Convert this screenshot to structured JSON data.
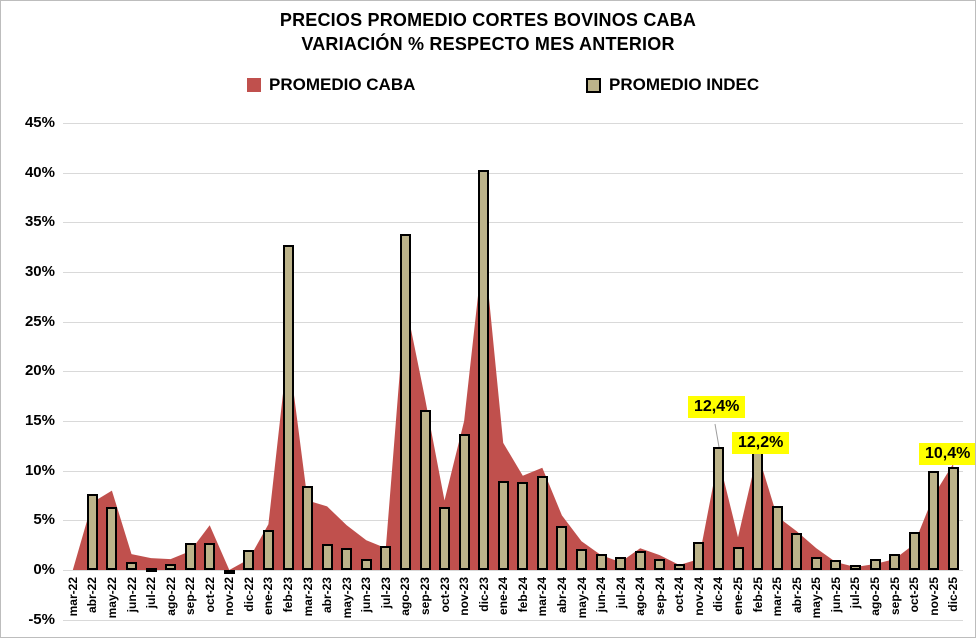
{
  "title": {
    "line1": "PRECIOS PROMEDIO CORTES BOVINOS CABA",
    "line2": "VARIACIÓN % RESPECTO MES ANTERIOR"
  },
  "legend": [
    {
      "label": "PROMEDIO CABA",
      "swatch": "red-square",
      "color": "#C0504D"
    },
    {
      "label": "PROMEDIO INDEC",
      "swatch": "tan-square-outlined",
      "color": "#BCB38A"
    }
  ],
  "chart_data": {
    "type": "combo-area-bar",
    "title": "PRECIOS PROMEDIO CORTES BOVINOS CABA — VARIACIÓN % RESPECTO MES ANTERIOR",
    "categories": [
      "mar-22",
      "abr-22",
      "may-22",
      "jun-22",
      "jul-22",
      "ago-22",
      "sep-22",
      "oct-22",
      "nov-22",
      "dic-22",
      "ene-23",
      "feb-23",
      "mar-23",
      "abr-23",
      "may-23",
      "jun-23",
      "jul-23",
      "ago-23",
      "sep-23",
      "oct-23",
      "nov-23",
      "dic-23",
      "ene-24",
      "feb-24",
      "mar-24",
      "abr-24",
      "may-24",
      "jun-24",
      "jul-24",
      "ago-24",
      "sep-24",
      "oct-24",
      "nov-24",
      "dic-24",
      "ene-25",
      "feb-25",
      "mar-25",
      "abr-25",
      "may-25",
      "jun-25",
      "jul-25",
      "ago-25",
      "sep-25",
      "oct-25",
      "nov-25",
      "dic-25"
    ],
    "series": [
      {
        "name": "PROMEDIO CABA",
        "type": "area",
        "color": "#C0504D",
        "values": [
          0.0,
          6.8,
          8.0,
          1.6,
          1.2,
          1.1,
          1.9,
          4.5,
          0.0,
          1.1,
          4.6,
          22.3,
          7.0,
          6.4,
          4.5,
          3.0,
          2.2,
          27.0,
          17.3,
          7.0,
          15.0,
          32.8,
          12.8,
          9.5,
          10.3,
          5.5,
          2.9,
          1.5,
          0.8,
          2.2,
          1.5,
          0.5,
          1.1,
          11.3,
          3.3,
          11.8,
          5.4,
          3.9,
          2.2,
          0.8,
          0.3,
          0.6,
          1.1,
          2.6,
          7.5,
          10.7
        ]
      },
      {
        "name": "PROMEDIO INDEC",
        "type": "bar",
        "color": "#BCB38A",
        "border_color": "#000000",
        "values": [
          null,
          7.7,
          6.3,
          0.8,
          0.2,
          0.6,
          2.7,
          2.7,
          -0.2,
          2.0,
          4.0,
          32.7,
          8.5,
          2.6,
          2.2,
          1.1,
          2.4,
          33.8,
          16.1,
          6.3,
          13.7,
          40.3,
          9.0,
          8.9,
          9.5,
          4.4,
          2.1,
          1.6,
          1.3,
          1.9,
          1.1,
          0.6,
          2.8,
          12.4,
          2.3,
          12.2,
          6.5,
          3.7,
          1.3,
          1.0,
          0.5,
          1.1,
          1.6,
          3.8,
          10.0,
          10.4
        ]
      }
    ],
    "y_ticks": [
      "45%",
      "40%",
      "35%",
      "30%",
      "25%",
      "20%",
      "15%",
      "10%",
      "5%",
      "0%",
      "-5%"
    ],
    "ylim": [
      -5,
      45
    ],
    "grid": true,
    "legend_position": "top",
    "annotations": [
      {
        "text": "12,4%",
        "category": "dic-24",
        "series": "PROMEDIO INDEC",
        "bg": "#FFFF00",
        "leader_line": true
      },
      {
        "text": "12,2%",
        "category": "feb-25",
        "series": "PROMEDIO INDEC",
        "bg": "#FFFF00",
        "leader_line": false
      },
      {
        "text": "10,4%",
        "category": "dic-25",
        "series": "PROMEDIO INDEC",
        "bg": "#FFFF00",
        "leader_line": false
      }
    ],
    "colors": {
      "gridline": "#D9D9D9",
      "leader": "#9e9e9e",
      "text": "#000000",
      "background": "#FFFFFF"
    }
  }
}
